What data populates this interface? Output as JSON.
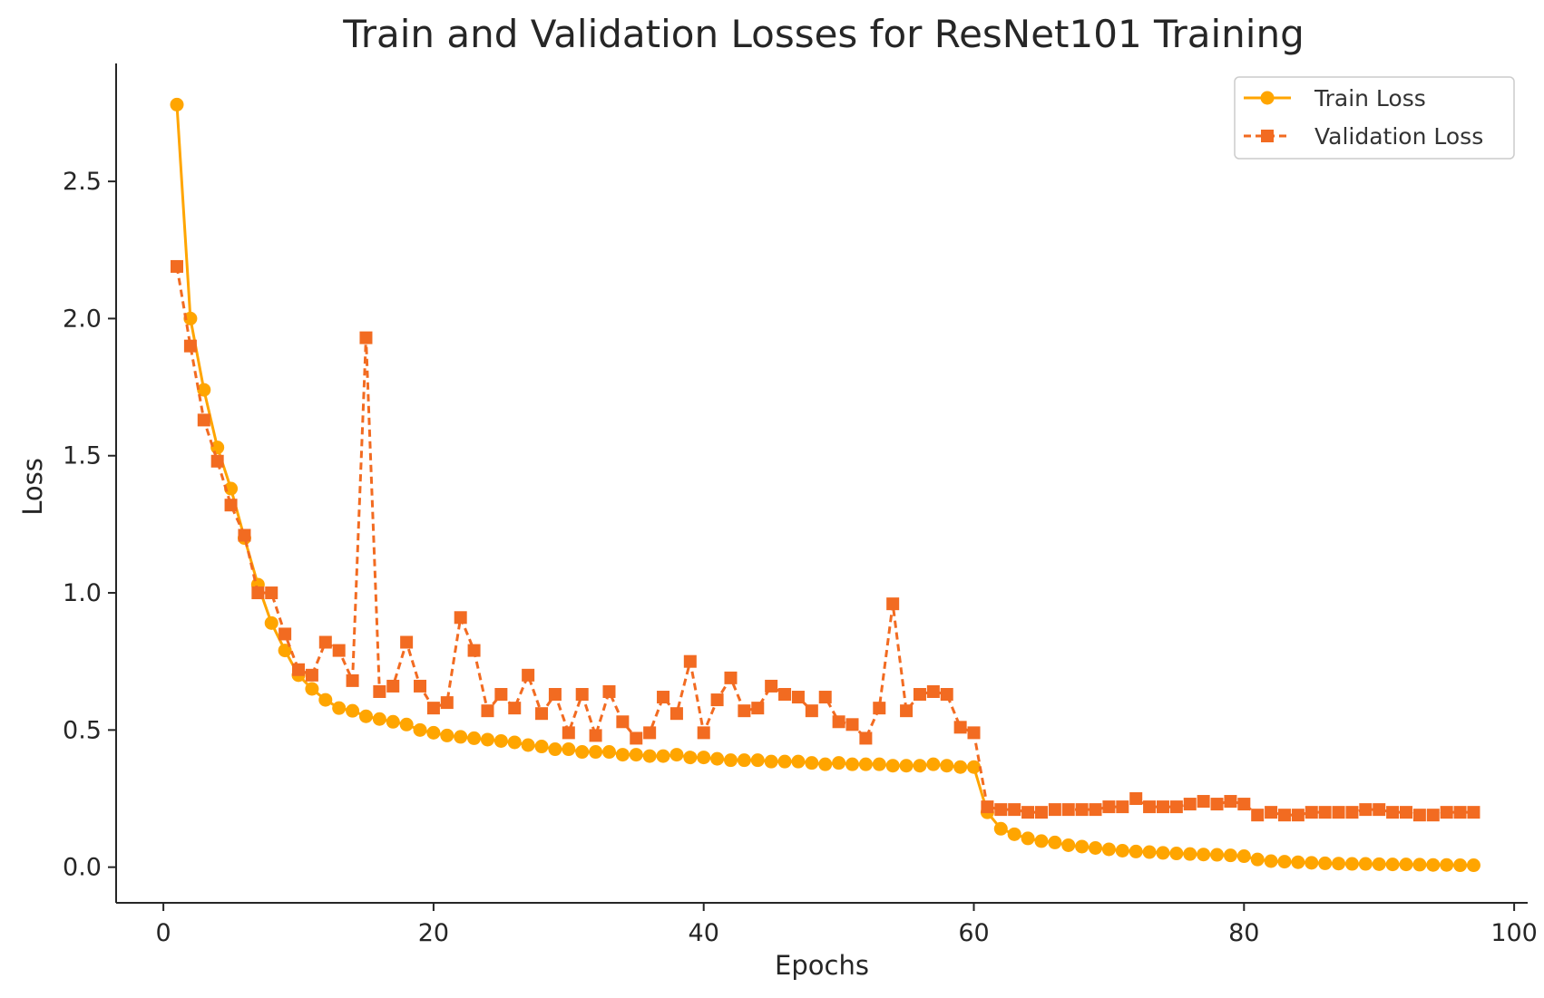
{
  "chart_data": {
    "type": "line",
    "title": "Train and Validation Losses for ResNet101 Training",
    "xlabel": "Epochs",
    "ylabel": "Loss",
    "xlim": [
      -3.5,
      101
    ],
    "ylim": [
      -0.13,
      2.93
    ],
    "xticks": [
      0,
      20,
      40,
      60,
      80,
      100
    ],
    "yticks": [
      0.0,
      0.5,
      1.0,
      1.5,
      2.0,
      2.5
    ],
    "xtick_labels": [
      "0",
      "20",
      "40",
      "60",
      "80",
      "100"
    ],
    "ytick_labels": [
      "0.0",
      "0.5",
      "1.0",
      "1.5",
      "2.0",
      "2.5"
    ],
    "grid": false,
    "legend_position": "top-right",
    "x": [
      1,
      2,
      3,
      4,
      5,
      6,
      7,
      8,
      9,
      10,
      11,
      12,
      13,
      14,
      15,
      16,
      17,
      18,
      19,
      20,
      21,
      22,
      23,
      24,
      25,
      26,
      27,
      28,
      29,
      30,
      31,
      32,
      33,
      34,
      35,
      36,
      37,
      38,
      39,
      40,
      41,
      42,
      43,
      44,
      45,
      46,
      47,
      48,
      49,
      50,
      51,
      52,
      53,
      54,
      55,
      56,
      57,
      58,
      59,
      60,
      61,
      62,
      63,
      64,
      65,
      66,
      67,
      68,
      69,
      70,
      71,
      72,
      73,
      74,
      75,
      76,
      77,
      78,
      79,
      80,
      81,
      82,
      83,
      84,
      85,
      86,
      87,
      88,
      89,
      90,
      91,
      92,
      93,
      94,
      95,
      96,
      97
    ],
    "series": [
      {
        "name": "Train Loss",
        "color": "#FFA500",
        "marker": "circle",
        "linestyle": "solid",
        "values": [
          2.78,
          2.0,
          1.74,
          1.53,
          1.38,
          1.2,
          1.03,
          0.89,
          0.79,
          0.7,
          0.65,
          0.61,
          0.58,
          0.57,
          0.55,
          0.54,
          0.53,
          0.52,
          0.5,
          0.49,
          0.48,
          0.475,
          0.47,
          0.465,
          0.46,
          0.455,
          0.445,
          0.44,
          0.43,
          0.43,
          0.42,
          0.42,
          0.42,
          0.41,
          0.41,
          0.405,
          0.405,
          0.41,
          0.4,
          0.4,
          0.395,
          0.39,
          0.39,
          0.39,
          0.385,
          0.385,
          0.385,
          0.38,
          0.375,
          0.38,
          0.375,
          0.375,
          0.375,
          0.37,
          0.37,
          0.37,
          0.375,
          0.37,
          0.365,
          0.365,
          0.2,
          0.14,
          0.12,
          0.105,
          0.095,
          0.09,
          0.08,
          0.075,
          0.07,
          0.065,
          0.06,
          0.057,
          0.055,
          0.052,
          0.05,
          0.048,
          0.046,
          0.045,
          0.043,
          0.04,
          0.028,
          0.022,
          0.02,
          0.018,
          0.016,
          0.014,
          0.013,
          0.012,
          0.012,
          0.011,
          0.01,
          0.01,
          0.009,
          0.008,
          0.008,
          0.007,
          0.007
        ]
      },
      {
        "name": "Validation Loss",
        "color": "#F26B21",
        "marker": "square",
        "linestyle": "dashed",
        "values": [
          2.19,
          1.9,
          1.63,
          1.48,
          1.32,
          1.21,
          1.0,
          1.0,
          0.85,
          0.72,
          0.7,
          0.82,
          0.79,
          0.68,
          1.93,
          0.64,
          0.66,
          0.82,
          0.66,
          0.58,
          0.6,
          0.91,
          0.79,
          0.57,
          0.63,
          0.58,
          0.7,
          0.56,
          0.63,
          0.49,
          0.63,
          0.48,
          0.64,
          0.53,
          0.47,
          0.49,
          0.62,
          0.56,
          0.75,
          0.49,
          0.61,
          0.69,
          0.57,
          0.58,
          0.66,
          0.63,
          0.62,
          0.57,
          0.62,
          0.53,
          0.52,
          0.47,
          0.58,
          0.96,
          0.57,
          0.63,
          0.64,
          0.63,
          0.51,
          0.49,
          0.22,
          0.21,
          0.21,
          0.2,
          0.2,
          0.21,
          0.21,
          0.21,
          0.21,
          0.22,
          0.22,
          0.25,
          0.22,
          0.22,
          0.22,
          0.23,
          0.24,
          0.23,
          0.24,
          0.23,
          0.19,
          0.2,
          0.19,
          0.19,
          0.2,
          0.2,
          0.2,
          0.2,
          0.21,
          0.21,
          0.2,
          0.2,
          0.19,
          0.19,
          0.2,
          0.2,
          0.2
        ]
      }
    ]
  }
}
